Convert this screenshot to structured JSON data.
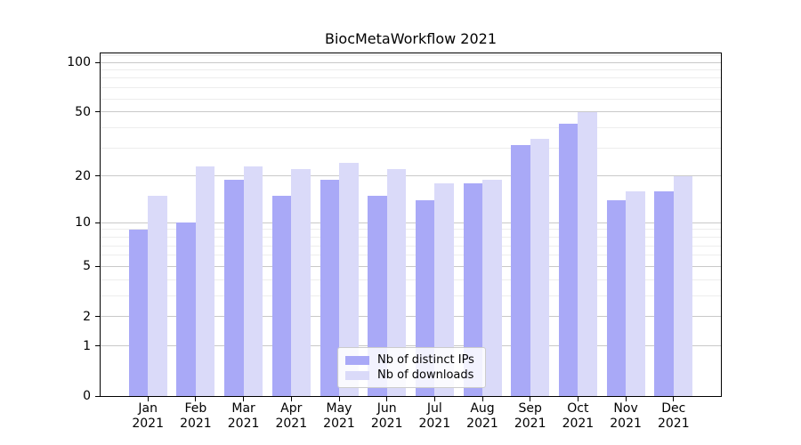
{
  "title": "BiocMetaWorkflow 2021",
  "chart_data": {
    "type": "bar",
    "categories": [
      "Jan",
      "Feb",
      "Mar",
      "Apr",
      "May",
      "Jun",
      "Jul",
      "Aug",
      "Sep",
      "Oct",
      "Nov",
      "Dec"
    ],
    "year_label": "2021",
    "series": [
      {
        "name": "Nb of distinct IPs",
        "color": "#a9a9f7",
        "values": [
          9,
          10,
          19,
          15,
          19,
          15,
          14,
          18,
          31,
          42,
          14,
          16
        ]
      },
      {
        "name": "Nb of downloads",
        "color": "#dadaf9",
        "values": [
          15,
          23,
          23,
          22,
          24,
          22,
          18,
          19,
          34,
          50,
          16,
          20
        ]
      }
    ],
    "yscale": "log1p",
    "yticks": [
      100,
      50,
      20,
      10,
      5,
      2,
      1,
      0
    ],
    "ylim": [
      0,
      113
    ],
    "grid": "horizontal",
    "legend_position": "lower-center"
  }
}
